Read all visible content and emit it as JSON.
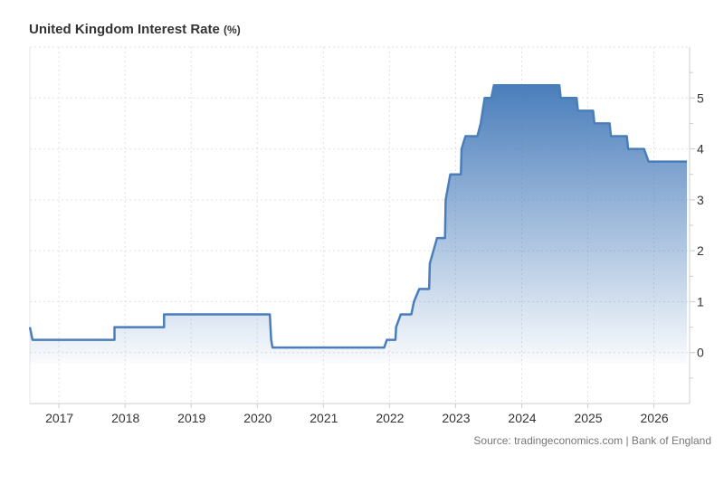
{
  "chart_data": {
    "type": "area",
    "title": "United Kingdom Interest Rate",
    "title_unit": "(%)",
    "xlabel": "",
    "ylabel": "",
    "xlim": [
      2016.56,
      2026.54
    ],
    "ylim": [
      -1,
      6
    ],
    "y_ticks": [
      0,
      1,
      2,
      3,
      4,
      5
    ],
    "x_ticks": [
      2017,
      2018,
      2019,
      2020,
      2021,
      2022,
      2023,
      2024,
      2025,
      2026
    ],
    "grid": true,
    "color": "#4a7ebb",
    "series": [
      {
        "points": [
          [
            2016.56,
            0.5
          ],
          [
            2016.6,
            0.25
          ],
          [
            2017.84,
            0.25
          ],
          [
            2017.84,
            0.5
          ],
          [
            2018.59,
            0.5
          ],
          [
            2018.59,
            0.75
          ],
          [
            2020.19,
            0.75
          ],
          [
            2020.21,
            0.25
          ],
          [
            2020.23,
            0.1
          ],
          [
            2021.92,
            0.1
          ],
          [
            2021.96,
            0.25
          ],
          [
            2022.09,
            0.25
          ],
          [
            2022.1,
            0.5
          ],
          [
            2022.17,
            0.75
          ],
          [
            2022.33,
            0.75
          ],
          [
            2022.37,
            1.0
          ],
          [
            2022.45,
            1.25
          ],
          [
            2022.6,
            1.25
          ],
          [
            2022.61,
            1.75
          ],
          [
            2022.72,
            2.25
          ],
          [
            2022.84,
            2.25
          ],
          [
            2022.85,
            3.0
          ],
          [
            2022.92,
            3.5
          ],
          [
            2023.08,
            3.5
          ],
          [
            2023.09,
            4.0
          ],
          [
            2023.15,
            4.25
          ],
          [
            2023.33,
            4.25
          ],
          [
            2023.38,
            4.5
          ],
          [
            2023.44,
            5.0
          ],
          [
            2023.54,
            5.0
          ],
          [
            2023.58,
            5.25
          ],
          [
            2024.57,
            5.25
          ],
          [
            2024.59,
            5.0
          ],
          [
            2024.83,
            5.0
          ],
          [
            2024.85,
            4.75
          ],
          [
            2025.08,
            4.75
          ],
          [
            2025.1,
            4.5
          ],
          [
            2025.33,
            4.5
          ],
          [
            2025.35,
            4.25
          ],
          [
            2025.59,
            4.25
          ],
          [
            2025.61,
            4.0
          ],
          [
            2025.85,
            4.0
          ],
          [
            2025.92,
            3.75
          ],
          [
            2026.5,
            3.75
          ]
        ]
      }
    ]
  },
  "source": "Source: tradingeconomics.com | Bank of England"
}
